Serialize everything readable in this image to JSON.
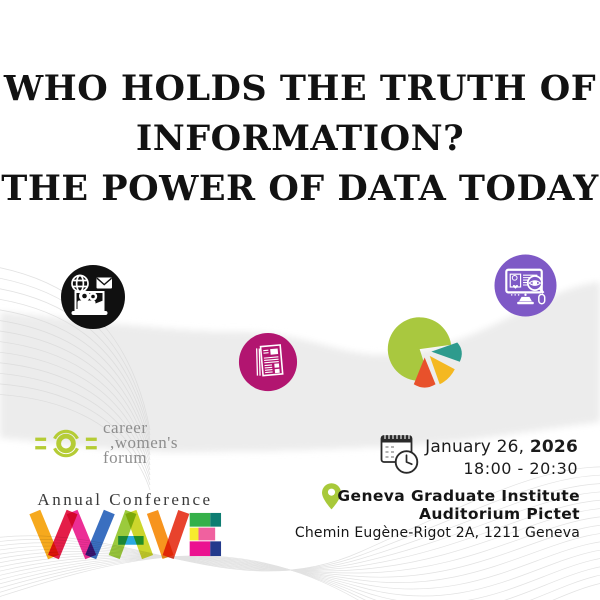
{
  "event": {
    "title_lines": [
      "WHO HOLDS THE TRUTH OF",
      "INFORMATION?",
      "THE POWER OF DATA TODAY"
    ],
    "date": {
      "day": "January 26, ",
      "year": "2026",
      "time": "18:00 - 20:30"
    },
    "venue": {
      "line1": "Geneva Graduate Institute",
      "line2": "Auditorium Pictet",
      "address": "Chemin Eugène-Rigot 2A, 1211 Geneva"
    }
  },
  "organizer": {
    "logo_lines": [
      "career",
      ",women's",
      "forum"
    ],
    "conference_label": "Annual Conference",
    "conference_name": "WAVE"
  },
  "icons": {
    "media": "globe-mail-video-media-icon",
    "news": "newspaper-icon",
    "pie": "pie-chart-icon",
    "screen": "monitor-analytics-icon",
    "calendar": "calendar-clock-icon",
    "pin": "location-pin-icon"
  },
  "colors": {
    "magenta_circle": "#b21570",
    "purple_circle": "#7e59c6",
    "black_circle": "#101010",
    "pie_green": "#a9c83f",
    "pie_red": "#e8512b",
    "pie_yellow": "#f4b821",
    "pie_teal": "#2e9b8d",
    "logo_green": "#b5cc35",
    "pin_green": "#a8c93a"
  }
}
